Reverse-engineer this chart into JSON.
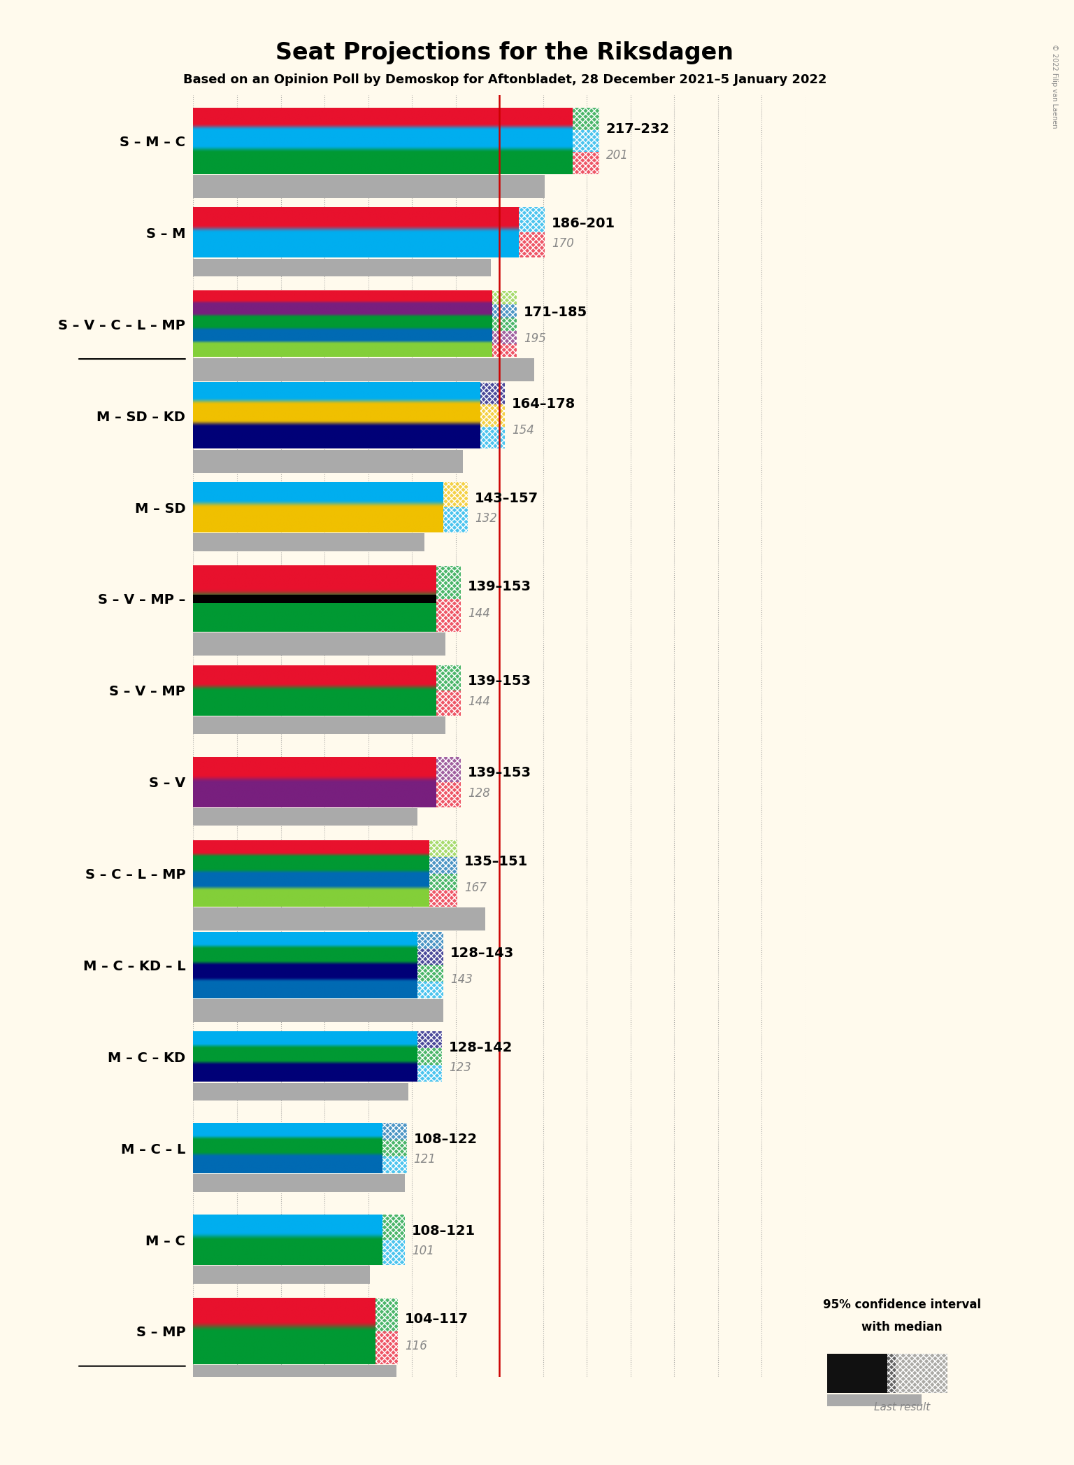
{
  "title": "Seat Projections for the Riksdagen",
  "subtitle": "Based on an Opinion Poll by Demoskop for Aftonbladet, 28 December 2021–5 January 2022",
  "copyright": "© 2022 Filip van Laenen",
  "background_color": "#FFFAED",
  "majority_line": 175,
  "x_max": 350,
  "bar_scale": 350,
  "coalitions": [
    {
      "label": "S – M – C",
      "underline": false,
      "range_low": 217,
      "range_high": 232,
      "last_result": 201,
      "colors": [
        "#E8112d",
        "#00AEEF",
        "#009933"
      ],
      "black_stripe": false,
      "bar_height": 0.72
    },
    {
      "label": "S – M",
      "underline": false,
      "range_low": 186,
      "range_high": 201,
      "last_result": 170,
      "colors": [
        "#E8112d",
        "#00AEEF"
      ],
      "black_stripe": false,
      "bar_height": 0.55
    },
    {
      "label": "S – V – C – L – MP",
      "underline": true,
      "range_low": 171,
      "range_high": 185,
      "last_result": 195,
      "colors": [
        "#E8112d",
        "#781F7E",
        "#009933",
        "#006AB3",
        "#83CF39"
      ],
      "black_stripe": false,
      "bar_height": 0.72
    },
    {
      "label": "M – SD – KD",
      "underline": false,
      "range_low": 164,
      "range_high": 178,
      "last_result": 154,
      "colors": [
        "#00AEEF",
        "#F0C000",
        "#000077"
      ],
      "black_stripe": false,
      "bar_height": 0.72
    },
    {
      "label": "M – SD",
      "underline": false,
      "range_low": 143,
      "range_high": 157,
      "last_result": 132,
      "colors": [
        "#00AEEF",
        "#F0C000"
      ],
      "black_stripe": false,
      "bar_height": 0.55
    },
    {
      "label": "S – V – MP –",
      "underline": false,
      "range_low": 139,
      "range_high": 153,
      "last_result": 144,
      "colors": [
        "#E8112d",
        "#009933"
      ],
      "black_stripe": true,
      "bar_height": 0.72
    },
    {
      "label": "S – V – MP",
      "underline": false,
      "range_low": 139,
      "range_high": 153,
      "last_result": 144,
      "colors": [
        "#E8112d",
        "#009933"
      ],
      "black_stripe": false,
      "bar_height": 0.55
    },
    {
      "label": "S – V",
      "underline": false,
      "range_low": 139,
      "range_high": 153,
      "last_result": 128,
      "colors": [
        "#E8112d",
        "#781F7E"
      ],
      "black_stripe": false,
      "bar_height": 0.55
    },
    {
      "label": "S – C – L – MP",
      "underline": false,
      "range_low": 135,
      "range_high": 151,
      "last_result": 167,
      "colors": [
        "#E8112d",
        "#009933",
        "#006AB3",
        "#83CF39"
      ],
      "black_stripe": false,
      "bar_height": 0.72
    },
    {
      "label": "M – C – KD – L",
      "underline": false,
      "range_low": 128,
      "range_high": 143,
      "last_result": 143,
      "colors": [
        "#00AEEF",
        "#009933",
        "#000077",
        "#006AB3"
      ],
      "black_stripe": false,
      "bar_height": 0.72
    },
    {
      "label": "M – C – KD",
      "underline": false,
      "range_low": 128,
      "range_high": 142,
      "last_result": 123,
      "colors": [
        "#00AEEF",
        "#009933",
        "#000077"
      ],
      "black_stripe": false,
      "bar_height": 0.55
    },
    {
      "label": "M – C – L",
      "underline": false,
      "range_low": 108,
      "range_high": 122,
      "last_result": 121,
      "colors": [
        "#00AEEF",
        "#009933",
        "#006AB3"
      ],
      "black_stripe": false,
      "bar_height": 0.55
    },
    {
      "label": "M – C",
      "underline": false,
      "range_low": 108,
      "range_high": 121,
      "last_result": 101,
      "colors": [
        "#00AEEF",
        "#009933"
      ],
      "black_stripe": false,
      "bar_height": 0.55
    },
    {
      "label": "S – MP",
      "underline": true,
      "range_low": 104,
      "range_high": 117,
      "last_result": 116,
      "colors": [
        "#E8112d",
        "#009933"
      ],
      "black_stripe": false,
      "bar_height": 0.72
    }
  ]
}
